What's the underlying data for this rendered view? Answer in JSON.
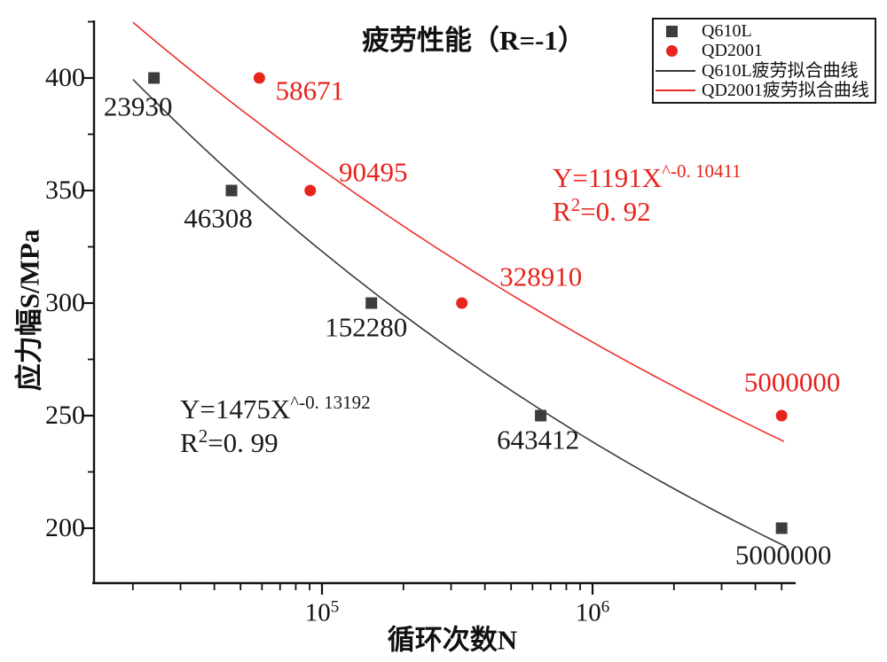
{
  "title": "疲劳性能（R=-1）",
  "axes": {
    "x_label": "循环次数N",
    "y_label": "应力幅S/MPa",
    "y_major_ticks": [
      {
        "value": 400,
        "label": "400"
      },
      {
        "value": 350,
        "label": "350"
      },
      {
        "value": 300,
        "label": "300"
      },
      {
        "value": 250,
        "label": "250"
      },
      {
        "value": 200,
        "label": "200"
      }
    ],
    "y_minor_ticks": [
      425,
      375,
      325,
      275,
      225
    ],
    "x_major_ticks": [
      {
        "value": 100000,
        "base": "10",
        "sup": "5"
      },
      {
        "value": 1000000,
        "base": "10",
        "sup": "6"
      }
    ],
    "x_minor_ticks": [
      20000,
      30000,
      40000,
      50000,
      60000,
      70000,
      80000,
      90000,
      200000,
      300000,
      400000,
      500000,
      600000,
      700000,
      800000,
      900000,
      2000000,
      3000000,
      4000000,
      5000000
    ]
  },
  "legend": {
    "items": [
      {
        "label": "Q610L",
        "marker": "square",
        "color": "#3d3d3d"
      },
      {
        "label": "QD2001",
        "marker": "circle",
        "color": "#e8241d"
      },
      {
        "label": "Q610L疲劳拟合曲线",
        "marker": "line",
        "color": "#3a3a3a"
      },
      {
        "label": "QD2001疲劳拟合曲线",
        "marker": "line",
        "color": "#ee2f28"
      }
    ]
  },
  "annotations": {
    "black_fit": {
      "eq_base": "Y=1475X",
      "eq_sup": "^-0. 13192",
      "r2_base": "R",
      "r2_sup": "2",
      "r2_tail": "=0. 99",
      "color": "#1a1a1a"
    },
    "red_fit": {
      "eq_base": "Y=1191X",
      "eq_sup": "^-0. 10411",
      "r2_base": "R",
      "r2_sup": "2",
      "r2_tail": "=0. 92",
      "color": "#e8231d"
    }
  },
  "chart_data": {
    "type": "scatter",
    "title": "疲劳性能（R=-1）",
    "xlabel": "循环次数N",
    "ylabel": "应力幅S/MPa",
    "x_scale": "log10",
    "x_range_cycles": [
      14000,
      5600000
    ],
    "y_range_mpa": [
      176,
      431
    ],
    "grid": false,
    "legend_position": "top-right",
    "series": [
      {
        "name": "Q610L",
        "marker": "square",
        "color": "#3d3d3d",
        "label_color": "#1a1a1a",
        "points": [
          {
            "N": 23930,
            "S": 400,
            "label": "23930",
            "label_dx": -18,
            "label_dy": 32
          },
          {
            "N": 46308,
            "S": 350,
            "label": "46308",
            "label_dx": -15,
            "label_dy": 31
          },
          {
            "N": 152280,
            "S": 300,
            "label": "152280",
            "label_dx": -6,
            "label_dy": 27
          },
          {
            "N": 643412,
            "S": 250,
            "label": "643412",
            "label_dx": -3,
            "label_dy": 27
          },
          {
            "N": 5000000,
            "S": 200,
            "label": "5000000",
            "label_dx": 2,
            "label_dy": 30
          }
        ]
      },
      {
        "name": "QD2001",
        "marker": "circle",
        "color": "#e8241d",
        "label_color": "#e8231d",
        "points": [
          {
            "N": 58671,
            "S": 400,
            "label": "58671",
            "label_dx": 57,
            "label_dy": 14
          },
          {
            "N": 90495,
            "S": 350,
            "label": "90495",
            "label_dx": 71,
            "label_dy": -21
          },
          {
            "N": 328910,
            "S": 300,
            "label": "328910",
            "label_dx": 89,
            "label_dy": -30
          },
          {
            "N": 5000000,
            "S": 250,
            "label": "5000000",
            "label_dx": 12,
            "label_dy": -38
          }
        ]
      }
    ],
    "fit_curves": [
      {
        "name": "Q610L疲劳拟合曲线",
        "color": "#3a3a3a",
        "equation": "Y=1475X^-0.13192",
        "coefficient": 1475,
        "exponent": -0.13192,
        "r_squared": 0.99,
        "N_start": 20000,
        "N_end": 5200000
      },
      {
        "name": "QD2001疲劳拟合曲线",
        "color": "#ee2f28",
        "equation": "Y=1191X^-0.10411",
        "coefficient": 1191,
        "exponent": -0.10411,
        "r_squared": 0.92,
        "N_start": 20000,
        "N_end": 5100000
      }
    ]
  }
}
